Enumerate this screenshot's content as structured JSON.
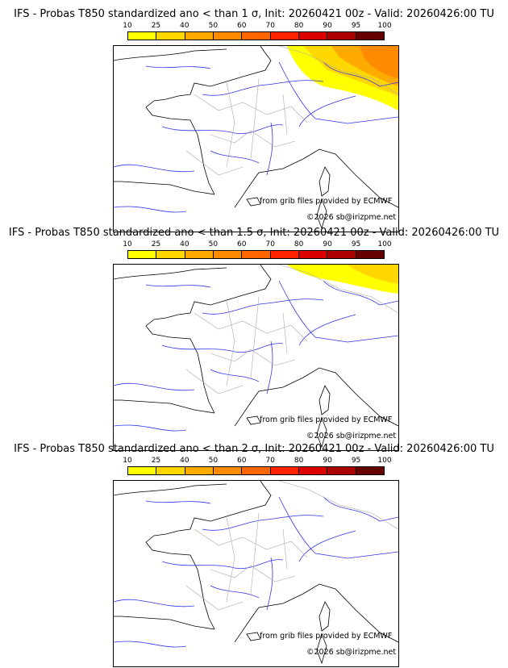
{
  "colorbar": {
    "ticks": [
      "10",
      "25",
      "40",
      "50",
      "60",
      "70",
      "80",
      "90",
      "95",
      "100"
    ],
    "colors": [
      "#ffff00",
      "#ffd700",
      "#ffaa00",
      "#ff8c00",
      "#ff6600",
      "#ff2200",
      "#dd0000",
      "#aa0000",
      "#660000"
    ]
  },
  "panels": [
    {
      "title": "IFS - Probas T850  standardized ano < than 1 σ, Init: 20260421 00z - Valid: 20260426:00 TU",
      "source": "from grib files provided by ECMWF",
      "copyright": "©2026 sb@irizpme.net"
    },
    {
      "title": "IFS - Probas T850  standardized ano < than 1.5 σ, Init: 20260421 00z - Valid: 20260426:00 TU",
      "source": "from grib files provided by ECMWF",
      "copyright": "©2026 sb@irizpme.net"
    },
    {
      "title": "IFS - Probas T850  standardized ano < than 2 σ, Init: 20260421 00z - Valid: 20260426:00 TU",
      "source": "from grib files provided by ECMWF",
      "copyright": "©2026 sb@irizpme.net"
    }
  ]
}
